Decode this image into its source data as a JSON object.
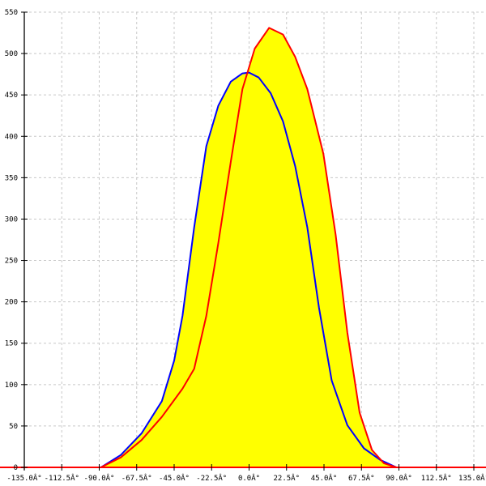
{
  "chart_data": {
    "type": "area",
    "title": "",
    "xlabel": "",
    "ylabel": "",
    "xlim": [
      -135,
      135
    ],
    "ylim": [
      0,
      550
    ],
    "grid": true,
    "x_ticks": [
      -135,
      -112.5,
      -90,
      -67.5,
      -45,
      -22.5,
      0,
      22.5,
      45,
      67.5,
      90,
      112.5,
      135
    ],
    "x_tick_labels": [
      "-135.0Â°",
      "-112.5Â°",
      "-90.0Â°",
      "-67.5Â°",
      "-45.0Â°",
      "-22.5Â°",
      "0.0Â°",
      "22.5Â°",
      "45.0Â°",
      "67.5Â°",
      "90.0Â°",
      "112.5Â°",
      "135.0Â°"
    ],
    "y_ticks": [
      0,
      50,
      100,
      150,
      200,
      250,
      300,
      350,
      400,
      450,
      500,
      550
    ],
    "y_tick_labels": [
      "0",
      "50",
      "100",
      "150",
      "200",
      "250",
      "300",
      "350",
      "400",
      "450",
      "500",
      "550"
    ],
    "fill_color": "#ffff00",
    "series": [
      {
        "color": "#0000ff",
        "x": [
          -89,
          -77,
          -64.6,
          -52.4,
          -45,
          -40,
          -33,
          -25.7,
          -18.5,
          -11,
          -4,
          0,
          5.8,
          13,
          20.4,
          27.7,
          35,
          42,
          49.6,
          59,
          69,
          78.8,
          88.5
        ],
        "y": [
          0,
          15,
          41,
          80,
          129,
          183,
          290,
          388,
          437,
          466,
          476,
          477,
          471,
          452,
          418,
          364,
          290,
          193,
          105,
          51,
          23,
          9,
          0
        ]
      },
      {
        "color": "#ff0000",
        "x": [
          -89,
          -77,
          -64.6,
          -52.4,
          -40,
          -33,
          -25.7,
          -18.5,
          -11,
          -4,
          3.4,
          12,
          20.4,
          27.7,
          35,
          44.6,
          52,
          59,
          66.4,
          73.8,
          81,
          88.5
        ],
        "y": [
          0,
          12,
          33,
          61,
          95,
          119,
          183,
          271,
          369,
          457,
          506,
          531,
          523,
          496,
          457,
          379,
          281,
          163,
          66,
          21,
          5,
          0
        ]
      }
    ]
  }
}
